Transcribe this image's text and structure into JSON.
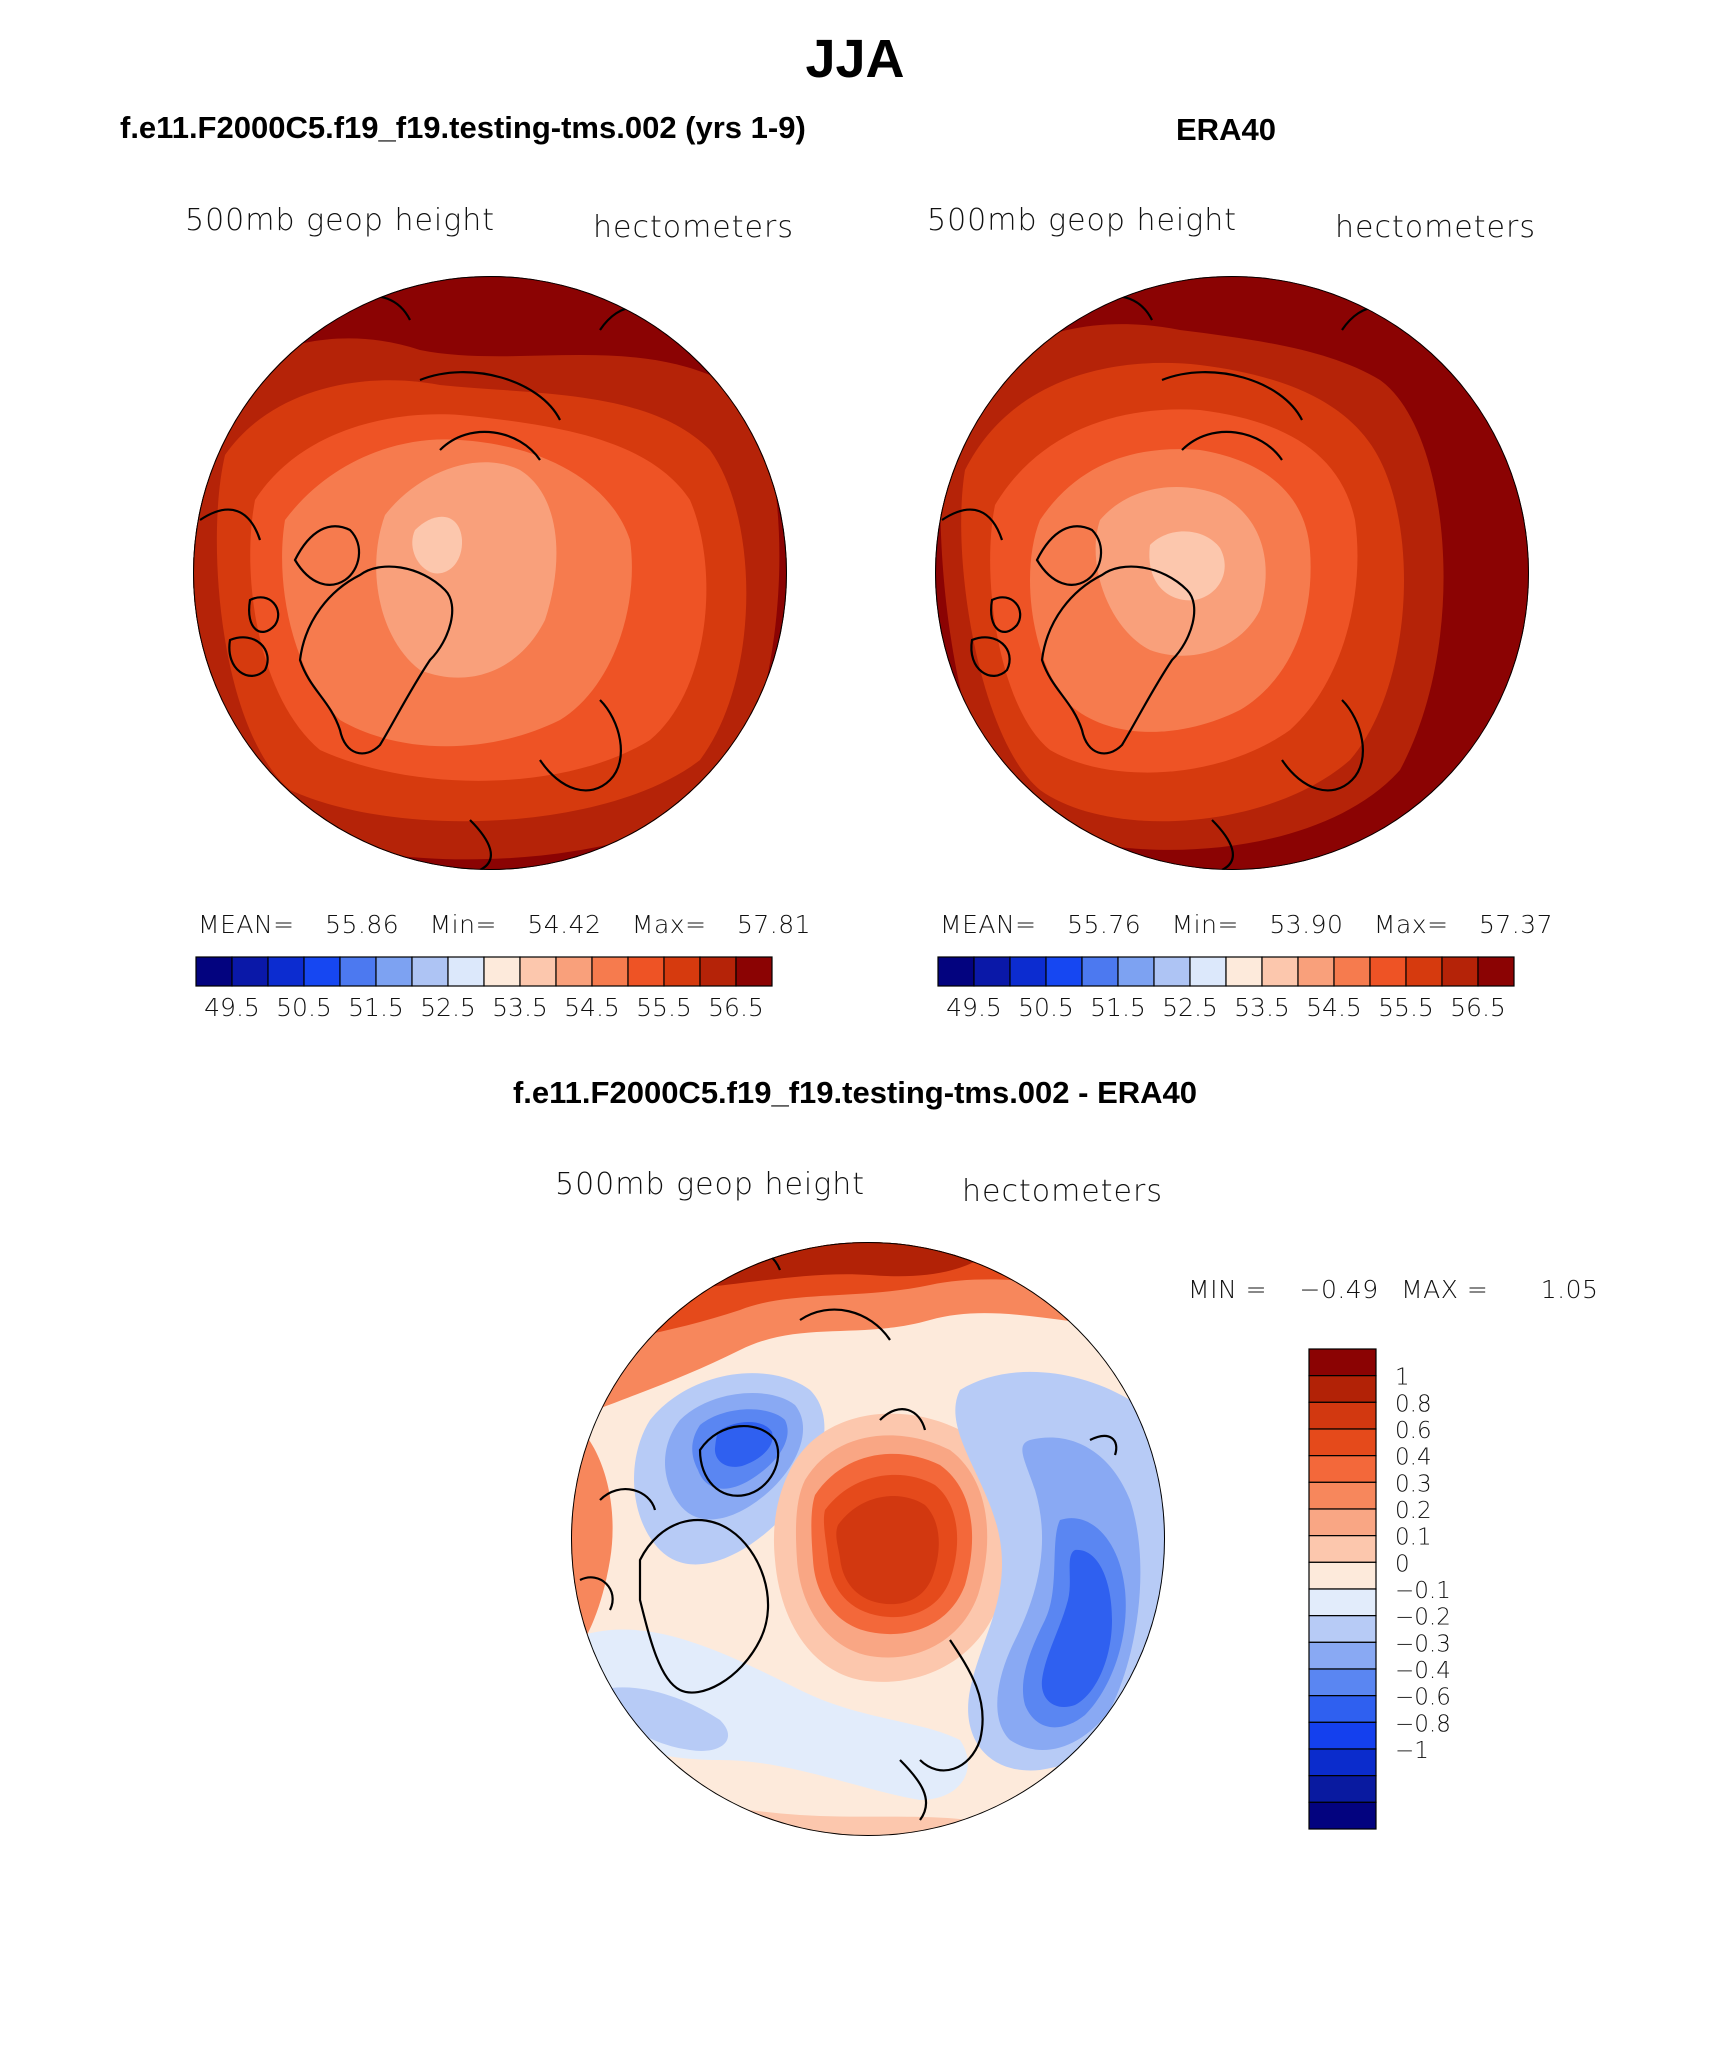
{
  "figure": {
    "season": "JJA",
    "colors": {
      "blue_red_16": [
        "#03037f",
        "#0a18a8",
        "#0c2cd0",
        "#1647f2",
        "#4c79f0",
        "#7da2f2",
        "#aec4f4",
        "#dce8fb",
        "#fdeadb",
        "#fcc7ad",
        "#f9a07b",
        "#f67b4e",
        "#ee5325",
        "#d63a0e",
        "#b52308",
        "#8b0303"
      ],
      "diff_18": [
        "#03037f",
        "#091aa0",
        "#0b2ccc",
        "#1440ee",
        "#2f60f0",
        "#5a86f2",
        "#89a9f3",
        "#b7cbf6",
        "#e2ecfb",
        "#fdeadb",
        "#fcc7ad",
        "#f9a684",
        "#f7875c",
        "#f3683a",
        "#e54a1b",
        "#d23810",
        "#b22206",
        "#8b0303"
      ]
    }
  },
  "chart_data": [
    {
      "type": "heatmap",
      "panel_title": "f.e11.F2000C5.f19_f19.testing-tms.002 (yrs 1-9)",
      "subtitle_left": "500mb geop height",
      "subtitle_right": "hectometers",
      "mean_label": "MEAN=",
      "mean": "55.86",
      "min_label": "Min=",
      "min": "54.42",
      "max_label": "Max=",
      "max": "57.81",
      "colorbar_ticks": [
        "49.5",
        "50.5",
        "51.5",
        "52.5",
        "53.5",
        "54.5",
        "55.5",
        "56.5"
      ],
      "levels": [
        49.5,
        50,
        50.5,
        51,
        51.5,
        52,
        52.5,
        53,
        53.5,
        54,
        54.5,
        55,
        55.5,
        56,
        56.5
      ],
      "projection": "north polar stereographic"
    },
    {
      "type": "heatmap",
      "panel_title": "ERA40",
      "subtitle_left": "500mb geop height",
      "subtitle_right": "hectometers",
      "mean_label": "MEAN=",
      "mean": "55.76",
      "min_label": "Min=",
      "min": "53.90",
      "max_label": "Max=",
      "max": "57.37",
      "colorbar_ticks": [
        "49.5",
        "50.5",
        "51.5",
        "52.5",
        "53.5",
        "54.5",
        "55.5",
        "56.5"
      ],
      "levels": [
        49.5,
        50,
        50.5,
        51,
        51.5,
        52,
        52.5,
        53,
        53.5,
        54,
        54.5,
        55,
        55.5,
        56,
        56.5
      ],
      "projection": "north polar stereographic"
    },
    {
      "type": "heatmap",
      "panel_title": "f.e11.F2000C5.f19_f19.testing-tms.002 - ERA40",
      "subtitle_left": "500mb geop height",
      "subtitle_right": "hectometers",
      "min_label": "MIN =",
      "min": "−0.49",
      "max_label": "MAX =",
      "max": "1.05",
      "colorbar_ticks": [
        "1",
        "0.8",
        "0.6",
        "0.4",
        "0.3",
        "0.2",
        "0.1",
        "0",
        "−0.1",
        "−0.2",
        "−0.3",
        "−0.4",
        "−0.6",
        "−0.8",
        "−1"
      ],
      "projection": "north polar stereographic"
    }
  ]
}
